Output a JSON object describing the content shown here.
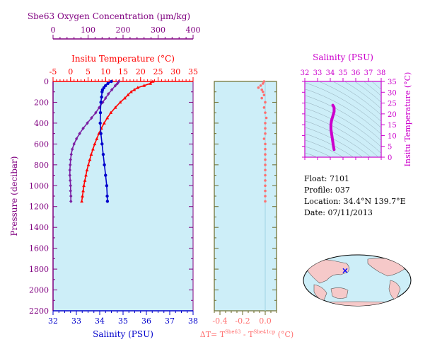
{
  "chart_data": {
    "type": "line",
    "oxygen_axis": {
      "label": "Sbe63 Oxygen Concentration (µm/kg)",
      "ticks": [
        0,
        100,
        200,
        300,
        400
      ],
      "range": [
        0,
        400
      ],
      "color": "#800080"
    },
    "temperature_axis": {
      "label": "Insitu Temperature (°C)",
      "ticks": [
        -5,
        0,
        5,
        10,
        15,
        20,
        25,
        30,
        35
      ],
      "range": [
        -5,
        35
      ],
      "color": "#ff0000"
    },
    "pressure_axis": {
      "label": "Pressure (decibar)",
      "ticks": [
        0,
        200,
        400,
        600,
        800,
        1000,
        1200,
        1400,
        1600,
        1800,
        2000,
        2200
      ],
      "range": [
        0,
        2200
      ],
      "reversed": true,
      "color": "#800080"
    },
    "salinity_axis": {
      "label": "Salinity (PSU)",
      "ticks": [
        32,
        33,
        34,
        35,
        36,
        37,
        38
      ],
      "range": [
        32,
        38
      ],
      "color": "#0000cc"
    },
    "series": [
      {
        "kind": "oxygen",
        "color": "#7b1fa2",
        "marker": "diamond",
        "points": [
          [
            0,
            188
          ],
          [
            20,
            184
          ],
          [
            40,
            178
          ],
          [
            80,
            168
          ],
          [
            120,
            158
          ],
          [
            160,
            150
          ],
          [
            200,
            142
          ],
          [
            250,
            132
          ],
          [
            300,
            122
          ],
          [
            350,
            110
          ],
          [
            400,
            98
          ],
          [
            450,
            86
          ],
          [
            500,
            76
          ],
          [
            550,
            67
          ],
          [
            600,
            60
          ],
          [
            650,
            55
          ],
          [
            700,
            52
          ],
          [
            750,
            50
          ],
          [
            800,
            49
          ],
          [
            850,
            48
          ],
          [
            900,
            48
          ],
          [
            950,
            49
          ],
          [
            1000,
            50
          ],
          [
            1050,
            50
          ],
          [
            1100,
            51
          ],
          [
            1150,
            51
          ]
        ]
      },
      {
        "kind": "temperature",
        "color": "#ff0000",
        "marker": "triangle",
        "points": [
          [
            0,
            23.5
          ],
          [
            20,
            22.8
          ],
          [
            40,
            21.0
          ],
          [
            60,
            19.2
          ],
          [
            80,
            18.2
          ],
          [
            100,
            17.3
          ],
          [
            130,
            16.4
          ],
          [
            160,
            15.5
          ],
          [
            200,
            14.2
          ],
          [
            250,
            12.8
          ],
          [
            300,
            11.5
          ],
          [
            350,
            10.5
          ],
          [
            400,
            9.6
          ],
          [
            450,
            8.8
          ],
          [
            500,
            8.1
          ],
          [
            550,
            7.5
          ],
          [
            600,
            6.9
          ],
          [
            650,
            6.4
          ],
          [
            700,
            5.9
          ],
          [
            750,
            5.5
          ],
          [
            800,
            5.1
          ],
          [
            850,
            4.7
          ],
          [
            900,
            4.4
          ],
          [
            950,
            4.1
          ],
          [
            1000,
            3.8
          ],
          [
            1050,
            3.6
          ],
          [
            1100,
            3.4
          ],
          [
            1150,
            3.2
          ]
        ]
      },
      {
        "kind": "salinity",
        "color": "#0000cc",
        "marker": "circle",
        "points": [
          [
            0,
            34.5
          ],
          [
            20,
            34.35
          ],
          [
            40,
            34.25
          ],
          [
            60,
            34.18
          ],
          [
            80,
            34.12
          ],
          [
            100,
            34.1
          ],
          [
            150,
            34.08
          ],
          [
            200,
            34.05
          ],
          [
            300,
            34.03
          ],
          [
            400,
            34.02
          ],
          [
            500,
            34.05
          ],
          [
            600,
            34.1
          ],
          [
            700,
            34.15
          ],
          [
            800,
            34.2
          ],
          [
            900,
            34.25
          ],
          [
            1000,
            34.3
          ],
          [
            1100,
            34.32
          ],
          [
            1150,
            34.33
          ]
        ]
      }
    ],
    "delta_t_panel": {
      "label_main": "ΔT= T",
      "label_sup1": "Sbe63",
      "label_minus": " - T",
      "label_sup2": "Sbe41cp",
      "label_unit": " (°C)",
      "ticks": [
        -0.4,
        -0.2,
        0.0
      ],
      "range": [
        -0.45,
        0.1
      ],
      "color": "#ff7070",
      "points": [
        [
          0,
          -0.01
        ],
        [
          20,
          -0.02
        ],
        [
          40,
          -0.04
        ],
        [
          60,
          -0.06
        ],
        [
          80,
          -0.03
        ],
        [
          100,
          -0.02
        ],
        [
          130,
          -0.01
        ],
        [
          160,
          -0.03
        ],
        [
          200,
          0.0
        ],
        [
          250,
          -0.01
        ],
        [
          300,
          0.0
        ],
        [
          350,
          0.01
        ],
        [
          400,
          0.0
        ],
        [
          450,
          0.0
        ],
        [
          500,
          0.0
        ],
        [
          550,
          -0.01
        ],
        [
          600,
          0.0
        ],
        [
          650,
          0.0
        ],
        [
          700,
          0.0
        ],
        [
          750,
          0.0
        ],
        [
          800,
          0.0
        ],
        [
          850,
          0.0
        ],
        [
          900,
          0.0
        ],
        [
          950,
          0.0
        ],
        [
          1000,
          0.0
        ],
        [
          1050,
          0.0
        ],
        [
          1100,
          0.0
        ],
        [
          1150,
          0.0
        ]
      ]
    },
    "ts_panel": {
      "salinity_label": "Salinity (PSU)",
      "temperature_label": "Insitu Temperature (°C)",
      "salinity_ticks": [
        32,
        33,
        34,
        35,
        36,
        37,
        38
      ],
      "salinity_range": [
        32,
        38
      ],
      "temperature_ticks": [
        0,
        5,
        10,
        15,
        20,
        25,
        30,
        35
      ],
      "temperature_range": [
        0,
        35
      ],
      "color": "#cc00cc",
      "points": [
        [
          34.3,
          3.5
        ],
        [
          34.25,
          5
        ],
        [
          34.2,
          7
        ],
        [
          34.15,
          9
        ],
        [
          34.1,
          11
        ],
        [
          34.05,
          13
        ],
        [
          34.05,
          15
        ],
        [
          34.1,
          17
        ],
        [
          34.2,
          19
        ],
        [
          34.3,
          21
        ],
        [
          34.3,
          23
        ],
        [
          34.2,
          24
        ]
      ]
    },
    "map_marker": {
      "lat": 34.4,
      "lon": 139.7,
      "color": "#0000ff"
    }
  },
  "info": {
    "float_label": "Float:",
    "float_value": "7101",
    "profile_label": "Profile:",
    "profile_value": "037",
    "location_label": "Location:",
    "location_value": "34.4°N  139.7°E",
    "date_label": "Date:",
    "date_value": "07/11/2013"
  }
}
